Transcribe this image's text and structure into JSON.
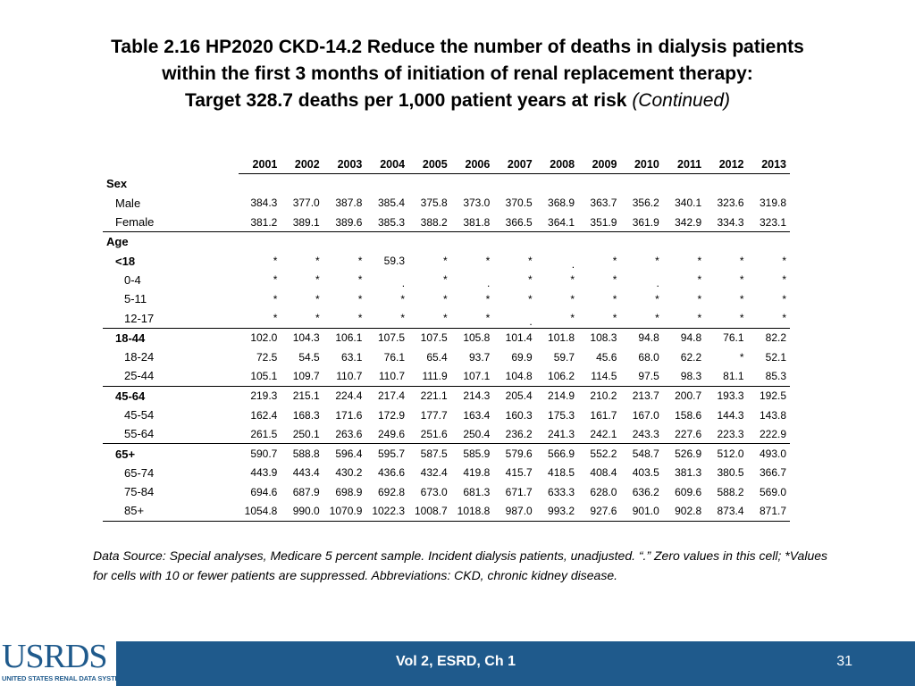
{
  "title": {
    "line1": "Table 2.16  HP2020 CKD-14.2 Reduce the number of deaths in dialysis patients",
    "line2": "within the first 3 months of initiation of renal replacement therapy:",
    "line3": "Target 328.7 deaths per 1,000 patient years at risk",
    "continued": "(Continued)"
  },
  "table": {
    "years": [
      "2001",
      "2002",
      "2003",
      "2004",
      "2005",
      "2006",
      "2007",
      "2008",
      "2009",
      "2010",
      "2011",
      "2012",
      "2013"
    ],
    "rows": [
      {
        "label": "Sex",
        "type": "section",
        "values": []
      },
      {
        "label": "Male",
        "indent": 1,
        "values": [
          "384.3",
          "377.0",
          "387.8",
          "385.4",
          "375.8",
          "373.0",
          "370.5",
          "368.9",
          "363.7",
          "356.2",
          "340.1",
          "323.6",
          "319.8"
        ]
      },
      {
        "label": "Female",
        "indent": 1,
        "rule": true,
        "values": [
          "381.2",
          "389.1",
          "389.6",
          "385.3",
          "388.2",
          "381.8",
          "366.5",
          "364.1",
          "351.9",
          "361.9",
          "342.9",
          "334.3",
          "323.1"
        ]
      },
      {
        "label": "Age",
        "type": "section",
        "values": []
      },
      {
        "label": "<18",
        "indent": 1,
        "bold": true,
        "values": [
          "*",
          "*",
          "*",
          "59.3",
          "*",
          "*",
          "*",
          ".",
          "*",
          "*",
          "*",
          "*",
          "*"
        ]
      },
      {
        "label": "0-4",
        "indent": 2,
        "values": [
          "*",
          "*",
          "*",
          ".",
          "*",
          ".",
          "*",
          "*",
          "*",
          ".",
          "*",
          "*",
          "*"
        ]
      },
      {
        "label": "5-11",
        "indent": 2,
        "values": [
          "*",
          "*",
          "*",
          "*",
          "*",
          "*",
          "*",
          "*",
          "*",
          "*",
          "*",
          "*",
          "*"
        ]
      },
      {
        "label": "12-17",
        "indent": 2,
        "rule": true,
        "values": [
          "*",
          "*",
          "*",
          "*",
          "*",
          "*",
          ".",
          "*",
          "*",
          "*",
          "*",
          "*",
          "*"
        ]
      },
      {
        "label": "18-44",
        "indent": 1,
        "bold": true,
        "values": [
          "102.0",
          "104.3",
          "106.1",
          "107.5",
          "107.5",
          "105.8",
          "101.4",
          "101.8",
          "108.3",
          "94.8",
          "94.8",
          "76.1",
          "82.2"
        ]
      },
      {
        "label": "18-24",
        "indent": 2,
        "values": [
          "72.5",
          "54.5",
          "63.1",
          "76.1",
          "65.4",
          "93.7",
          "69.9",
          "59.7",
          "45.6",
          "68.0",
          "62.2",
          "*",
          "52.1"
        ]
      },
      {
        "label": "25-44",
        "indent": 2,
        "rule": true,
        "values": [
          "105.1",
          "109.7",
          "110.7",
          "110.7",
          "111.9",
          "107.1",
          "104.8",
          "106.2",
          "114.5",
          "97.5",
          "98.3",
          "81.1",
          "85.3"
        ]
      },
      {
        "label": "45-64",
        "indent": 1,
        "bold": true,
        "values": [
          "219.3",
          "215.1",
          "224.4",
          "217.4",
          "221.1",
          "214.3",
          "205.4",
          "214.9",
          "210.2",
          "213.7",
          "200.7",
          "193.3",
          "192.5"
        ]
      },
      {
        "label": "45-54",
        "indent": 2,
        "values": [
          "162.4",
          "168.3",
          "171.6",
          "172.9",
          "177.7",
          "163.4",
          "160.3",
          "175.3",
          "161.7",
          "167.0",
          "158.6",
          "144.3",
          "143.8"
        ]
      },
      {
        "label": "55-64",
        "indent": 2,
        "rule": true,
        "values": [
          "261.5",
          "250.1",
          "263.6",
          "249.6",
          "251.6",
          "250.4",
          "236.2",
          "241.3",
          "242.1",
          "243.3",
          "227.6",
          "223.3",
          "222.9"
        ]
      },
      {
        "label": "65+",
        "indent": 1,
        "bold": true,
        "values": [
          "590.7",
          "588.8",
          "596.4",
          "595.7",
          "587.5",
          "585.9",
          "579.6",
          "566.9",
          "552.2",
          "548.7",
          "526.9",
          "512.0",
          "493.0"
        ]
      },
      {
        "label": "65-74",
        "indent": 2,
        "values": [
          "443.9",
          "443.4",
          "430.2",
          "436.6",
          "432.4",
          "419.8",
          "415.7",
          "418.5",
          "408.4",
          "403.5",
          "381.3",
          "380.5",
          "366.7"
        ]
      },
      {
        "label": "75-84",
        "indent": 2,
        "values": [
          "694.6",
          "687.9",
          "698.9",
          "692.8",
          "673.0",
          "681.3",
          "671.7",
          "633.3",
          "628.0",
          "636.2",
          "609.6",
          "588.2",
          "569.0"
        ]
      },
      {
        "label": "85+",
        "indent": 2,
        "rule": true,
        "values": [
          "1054.8",
          "990.0",
          "1070.9",
          "1022.3",
          "1008.7",
          "1018.8",
          "987.0",
          "993.2",
          "927.6",
          "901.0",
          "902.8",
          "873.4",
          "871.7"
        ]
      }
    ]
  },
  "footnote": "Data Source: Special analyses, Medicare 5 percent sample. Incident dialysis patients, unadjusted. “.” Zero values in this cell; *Values for cells with 10 or fewer patients are suppressed. Abbreviations: CKD, chronic kidney disease.",
  "footer": {
    "logo_text": "USRDS",
    "logo_subtitle": "UNITED STATES RENAL DATA SYSTEM",
    "center_text": "Vol 2, ESRD, Ch 1",
    "page_number": "31",
    "bar_color": "#1f5a8c"
  }
}
